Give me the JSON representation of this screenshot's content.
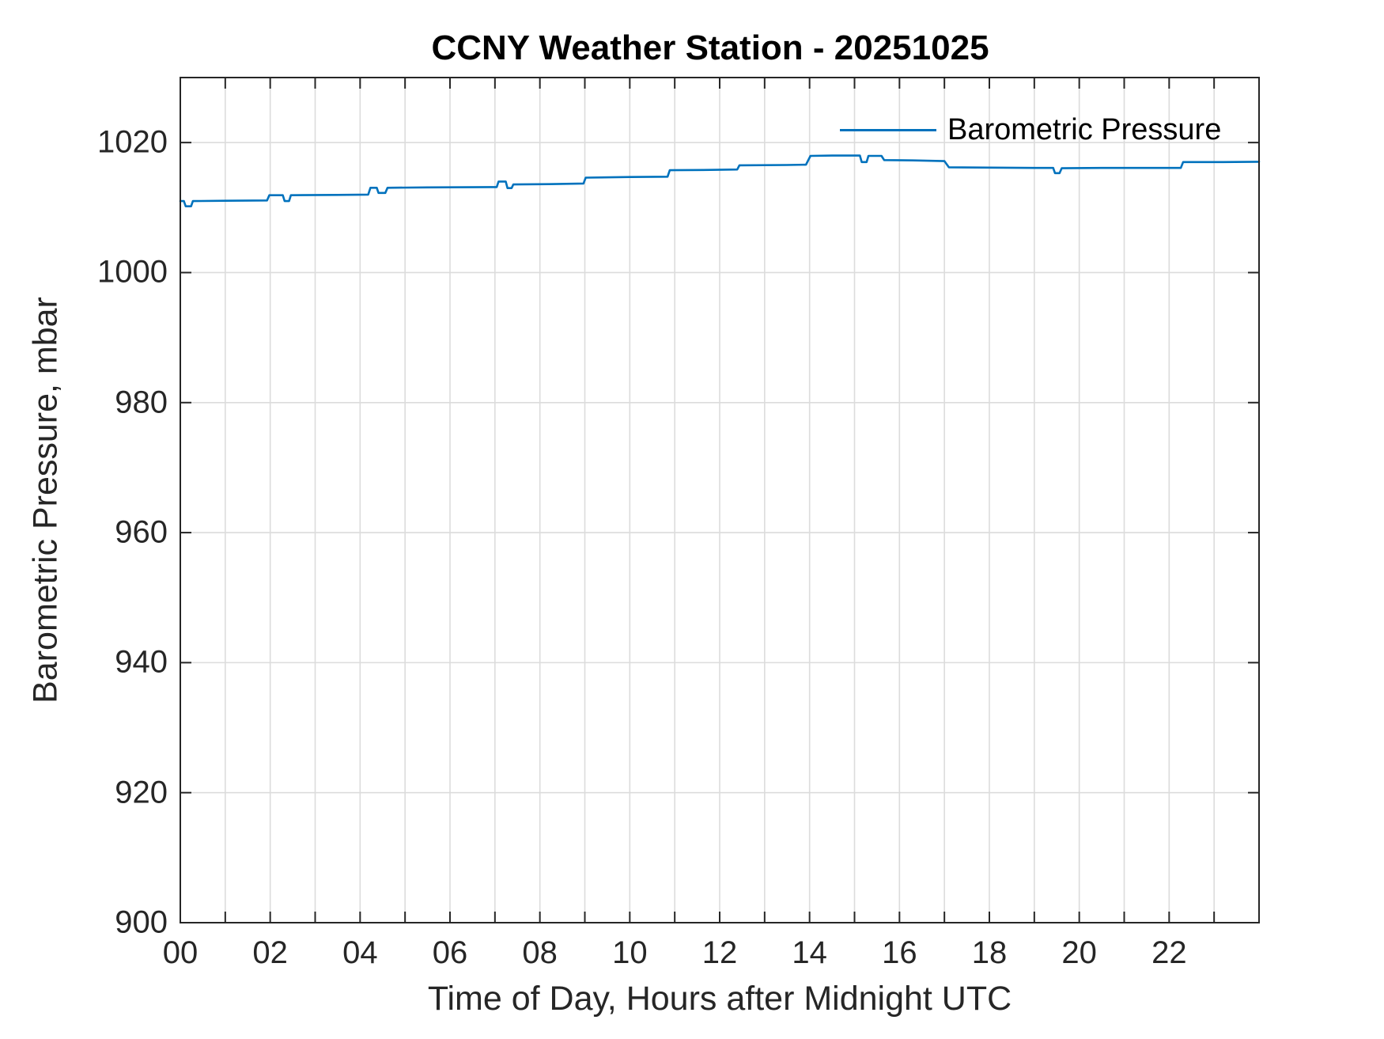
{
  "chart_data": {
    "type": "line",
    "title": "CCNY Weather Station - 20251025",
    "xlabel": "Time of Day, Hours after Midnight UTC",
    "ylabel": "Barometric Pressure, mbar",
    "xlim": [
      0,
      24
    ],
    "ylim": [
      900,
      1030
    ],
    "x_tick_hours": [
      0,
      1,
      2,
      3,
      4,
      5,
      6,
      7,
      8,
      9,
      10,
      11,
      12,
      13,
      14,
      15,
      16,
      17,
      18,
      19,
      20,
      21,
      22,
      23,
      24
    ],
    "x_labeled_hours": [
      0,
      2,
      4,
      6,
      8,
      10,
      12,
      14,
      16,
      18,
      20,
      22
    ],
    "x_tick_labels": [
      "00",
      "02",
      "04",
      "06",
      "08",
      "10",
      "12",
      "14",
      "16",
      "18",
      "20",
      "22"
    ],
    "y_ticks": [
      900,
      920,
      940,
      960,
      980,
      1000,
      1020
    ],
    "y_tick_labels": [
      "900",
      "920",
      "940",
      "960",
      "980",
      "1000",
      "1020"
    ],
    "grid": true,
    "legend": {
      "label": "Barometric Pressure",
      "position": "northeast",
      "box": false
    },
    "colors": {
      "line": "#0072BD",
      "grid": "#dcdcdc",
      "axis": "#262626",
      "title": "#000000"
    },
    "series": [
      {
        "name": "Barometric Pressure",
        "units": "mbar",
        "points": [
          [
            0.0,
            1011.0
          ],
          [
            0.08,
            1011.0
          ],
          [
            0.12,
            1010.2
          ],
          [
            0.24,
            1010.2
          ],
          [
            0.28,
            1011.0
          ],
          [
            1.0,
            1011.05
          ],
          [
            1.93,
            1011.1
          ],
          [
            1.98,
            1011.9
          ],
          [
            2.28,
            1011.9
          ],
          [
            2.32,
            1011.0
          ],
          [
            2.42,
            1011.0
          ],
          [
            2.46,
            1011.9
          ],
          [
            3.5,
            1011.95
          ],
          [
            4.18,
            1012.0
          ],
          [
            4.23,
            1013.05
          ],
          [
            4.37,
            1013.05
          ],
          [
            4.41,
            1012.25
          ],
          [
            4.56,
            1012.25
          ],
          [
            4.61,
            1013.05
          ],
          [
            5.5,
            1013.1
          ],
          [
            6.9,
            1013.15
          ],
          [
            7.04,
            1013.15
          ],
          [
            7.08,
            1014.0
          ],
          [
            7.24,
            1014.0
          ],
          [
            7.28,
            1013.0
          ],
          [
            7.37,
            1013.0
          ],
          [
            7.41,
            1013.55
          ],
          [
            8.2,
            1013.6
          ],
          [
            8.97,
            1013.7
          ],
          [
            9.02,
            1014.6
          ],
          [
            10.0,
            1014.7
          ],
          [
            10.84,
            1014.75
          ],
          [
            10.89,
            1015.75
          ],
          [
            11.8,
            1015.8
          ],
          [
            12.39,
            1015.85
          ],
          [
            12.44,
            1016.5
          ],
          [
            13.5,
            1016.55
          ],
          [
            13.92,
            1016.6
          ],
          [
            14.02,
            1017.95
          ],
          [
            14.5,
            1018.0
          ],
          [
            15.12,
            1018.0
          ],
          [
            15.16,
            1017.0
          ],
          [
            15.27,
            1017.0
          ],
          [
            15.31,
            1017.95
          ],
          [
            15.6,
            1017.95
          ],
          [
            15.66,
            1017.3
          ],
          [
            16.3,
            1017.25
          ],
          [
            17.0,
            1017.15
          ],
          [
            17.1,
            1016.2
          ],
          [
            18.0,
            1016.15
          ],
          [
            19.0,
            1016.1
          ],
          [
            19.42,
            1016.1
          ],
          [
            19.46,
            1015.3
          ],
          [
            19.56,
            1015.3
          ],
          [
            19.61,
            1016.05
          ],
          [
            20.5,
            1016.1
          ],
          [
            21.5,
            1016.1
          ],
          [
            22.26,
            1016.1
          ],
          [
            22.31,
            1017.0
          ],
          [
            23.2,
            1017.0
          ],
          [
            24.0,
            1017.05
          ]
        ]
      }
    ]
  }
}
